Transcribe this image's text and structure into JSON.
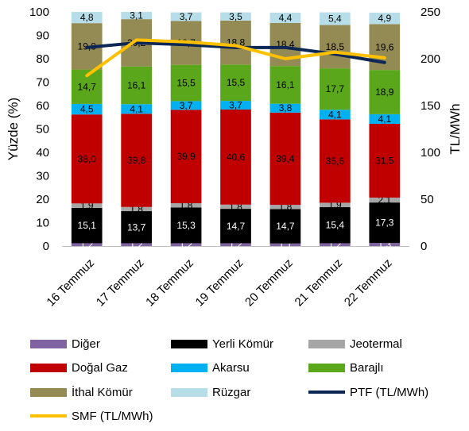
{
  "chart_data": {
    "type": "bar",
    "stacked": true,
    "categories": [
      "16 Temmuz",
      "17 Temmuz",
      "18 Temmuz",
      "19 Temmuz",
      "20 Temmuz",
      "21 Temmuz",
      "22 Temmuz"
    ],
    "ylabel": "Yüzde (%)",
    "y2label": "TL/MWh",
    "ylim": [
      0,
      100
    ],
    "y2lim": [
      0,
      250
    ],
    "yticks": [
      "0",
      "10",
      "20",
      "30",
      "40",
      "50",
      "60",
      "70",
      "80",
      "90",
      "100"
    ],
    "y2ticks": [
      "0",
      "50",
      "100",
      "150",
      "200",
      "250"
    ],
    "series": [
      {
        "name": "Diğer",
        "color": "#8064A2",
        "values": [
          1.2,
          1.2,
          1.2,
          1.2,
          1.1,
          1.2,
          1.3
        ],
        "labels": [
          "1,2",
          "1,2",
          "1,2",
          "1,2",
          "1,1",
          "1,2",
          "1,3"
        ]
      },
      {
        "name": "Yerli Kömür",
        "color": "#000000",
        "values": [
          15.1,
          13.7,
          15.3,
          14.7,
          14.7,
          15.4,
          17.3
        ],
        "labels": [
          "15,1",
          "13,7",
          "15,3",
          "14,7",
          "14,7",
          "15,4",
          "17,3"
        ]
      },
      {
        "name": "Jeotermal",
        "color": "#A6A6A6",
        "values": [
          1.9,
          1.8,
          1.8,
          1.8,
          1.8,
          1.9,
          2.1
        ],
        "labels": [
          "1,9",
          "1,8",
          "1,8",
          "1,8",
          "1,8",
          "1,9",
          "2,1"
        ]
      },
      {
        "name": "Doğal Gaz",
        "color": "#C00000",
        "values": [
          38.0,
          39.8,
          39.9,
          40.6,
          39.4,
          35.6,
          31.5
        ],
        "labels": [
          "38,0",
          "39,8",
          "39,9",
          "40,6",
          "39,4",
          "35,6",
          "31,5"
        ]
      },
      {
        "name": "Akarsu",
        "color": "#00B0F0",
        "values": [
          4.5,
          4.1,
          3.7,
          3.7,
          3.8,
          4.1,
          4.1
        ],
        "labels": [
          "4,5",
          "4,1",
          "3,7",
          "3,7",
          "3,8",
          "4,1",
          "4,1"
        ]
      },
      {
        "name": "Barajlı",
        "color": "#5BA71B",
        "values": [
          14.7,
          16.1,
          15.5,
          15.5,
          16.1,
          17.7,
          18.9
        ],
        "labels": [
          "14,7",
          "16,1",
          "15,5",
          "15,5",
          "16,1",
          "17,7",
          "18,9"
        ]
      },
      {
        "name": "İthal Kömür",
        "color": "#948A54",
        "values": [
          19.8,
          20.2,
          18.7,
          18.8,
          18.4,
          18.5,
          19.6
        ],
        "labels": [
          "19,8",
          "20,2",
          "18,7",
          "18,8",
          "18,4",
          "18,5",
          "19,6"
        ]
      },
      {
        "name": "Rüzgar",
        "color": "#B7DEE8",
        "values": [
          4.8,
          3.1,
          3.7,
          3.5,
          4.4,
          5.4,
          4.9
        ],
        "labels": [
          "4,8",
          "3,1",
          "3,7",
          "3,5",
          "4,4",
          "5,4",
          "4,9"
        ]
      }
    ],
    "lines": [
      {
        "name": "PTF (TL/MWh)",
        "color": "#0D2755",
        "axis": "right",
        "values": [
          212,
          217,
          215,
          212,
          212,
          205,
          196
        ]
      },
      {
        "name": "SMF (TL/MWh)",
        "color": "#FFC000",
        "axis": "right",
        "values": [
          182,
          220,
          218,
          214,
          200,
          207,
          201
        ]
      }
    ],
    "legend_position": "bottom"
  }
}
